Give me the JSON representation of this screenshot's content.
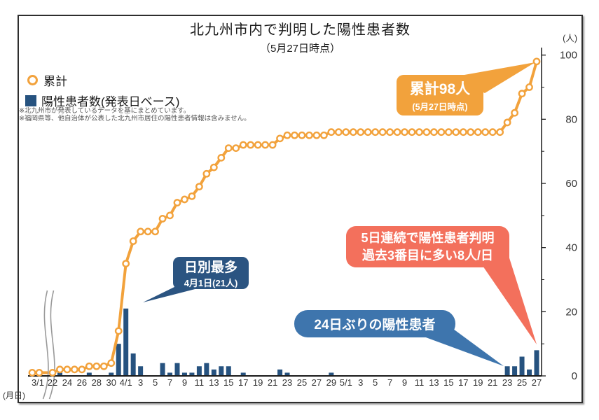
{
  "title": {
    "main": "北九州市内で判明した陽性患者数",
    "sub": "（5月27日時点）"
  },
  "legend": {
    "cumulative_label": "累計",
    "daily_label": "陽性患者数(発表日ベース)"
  },
  "notes": {
    "note1": "※北九州市が発表しているデータを基にまとめています。",
    "note2": "※福岡県等、他自治体が公表した北九州市居住の陽性患者情報は含みません。"
  },
  "axes": {
    "y_unit": "(人)",
    "x_unit": "(月日)",
    "y_tick_labels": [
      "0",
      "20",
      "40",
      "60",
      "80",
      "100"
    ],
    "x_first_label": "3/1",
    "x_tick_labels": [
      "22",
      "24",
      "26",
      "28",
      "30",
      "4/1",
      "3",
      "5",
      "7",
      "9",
      "11",
      "13",
      "15",
      "17",
      "19",
      "21",
      "23",
      "25",
      "27",
      "29",
      "5/1",
      "3",
      "5",
      "7",
      "9",
      "11",
      "13",
      "15",
      "17",
      "19",
      "21",
      "23",
      "25",
      "27"
    ]
  },
  "callouts": {
    "total": {
      "line1": "累計98人",
      "line2": "(5月27日時点)",
      "color": "#F2A23C"
    },
    "daily_max": {
      "line1": "日別最多",
      "line2": "4月1日(21人)",
      "color": "#2B5481"
    },
    "streak": {
      "line1": "5日連続で陽性患者判明",
      "line2": "過去3番目に多い8人/日",
      "color": "#F3705C"
    },
    "return": {
      "line1": "24日ぶりの陽性患者",
      "color": "#3E75AD"
    }
  },
  "chart_data": {
    "type": "bar+line",
    "title": "北九州市内で判明した陽性患者数（5月27日時点）",
    "ylabel": "(人)",
    "xlabel": "(月日)",
    "ylim": [
      0,
      100
    ],
    "y_ticks": [
      0,
      20,
      40,
      60,
      80,
      100
    ],
    "axis_break_after_first_point": true,
    "pre_break_point": {
      "date": "3/1",
      "daily": 1,
      "cumulative": 1
    },
    "dates": [
      "3/22",
      "3/23",
      "3/24",
      "3/25",
      "3/26",
      "3/27",
      "3/28",
      "3/29",
      "3/30",
      "3/31",
      "4/1",
      "4/2",
      "4/3",
      "4/4",
      "4/5",
      "4/6",
      "4/7",
      "4/8",
      "4/9",
      "4/10",
      "4/11",
      "4/12",
      "4/13",
      "4/14",
      "4/15",
      "4/16",
      "4/17",
      "4/18",
      "4/19",
      "4/20",
      "4/21",
      "4/22",
      "4/23",
      "4/24",
      "4/25",
      "4/26",
      "4/27",
      "4/28",
      "4/29",
      "4/30",
      "5/1",
      "5/2",
      "5/3",
      "5/4",
      "5/5",
      "5/6",
      "5/7",
      "5/8",
      "5/9",
      "5/10",
      "5/11",
      "5/12",
      "5/13",
      "5/14",
      "5/15",
      "5/16",
      "5/17",
      "5/18",
      "5/19",
      "5/20",
      "5/21",
      "5/22",
      "5/23",
      "5/24",
      "5/25",
      "5/26",
      "5/27"
    ],
    "series": [
      {
        "name": "累計",
        "type": "line",
        "color": "#F2A23C",
        "values": [
          1,
          2,
          2,
          2,
          2,
          3,
          3,
          3,
          4,
          14,
          35,
          42,
          45,
          45,
          45,
          49,
          50,
          54,
          55,
          56,
          59,
          63,
          65,
          68,
          71,
          71,
          72,
          72,
          72,
          72,
          72,
          74,
          75,
          75,
          75,
          75,
          75,
          75,
          76,
          76,
          76,
          76,
          76,
          76,
          76,
          76,
          76,
          76,
          76,
          76,
          76,
          76,
          76,
          76,
          76,
          76,
          76,
          76,
          76,
          76,
          76,
          76,
          79,
          82,
          88,
          90,
          98
        ]
      },
      {
        "name": "陽性患者数(発表日ベース)",
        "type": "bar",
        "color": "#26527F",
        "values": [
          0,
          1,
          0,
          0,
          0,
          1,
          0,
          0,
          1,
          10,
          21,
          7,
          3,
          0,
          0,
          4,
          1,
          4,
          1,
          1,
          3,
          4,
          2,
          3,
          3,
          0,
          1,
          0,
          0,
          0,
          0,
          2,
          1,
          0,
          0,
          0,
          0,
          0,
          1,
          0,
          0,
          0,
          0,
          0,
          0,
          0,
          0,
          0,
          0,
          0,
          0,
          0,
          0,
          0,
          0,
          0,
          0,
          0,
          0,
          0,
          0,
          0,
          3,
          3,
          6,
          2,
          8
        ]
      }
    ]
  }
}
